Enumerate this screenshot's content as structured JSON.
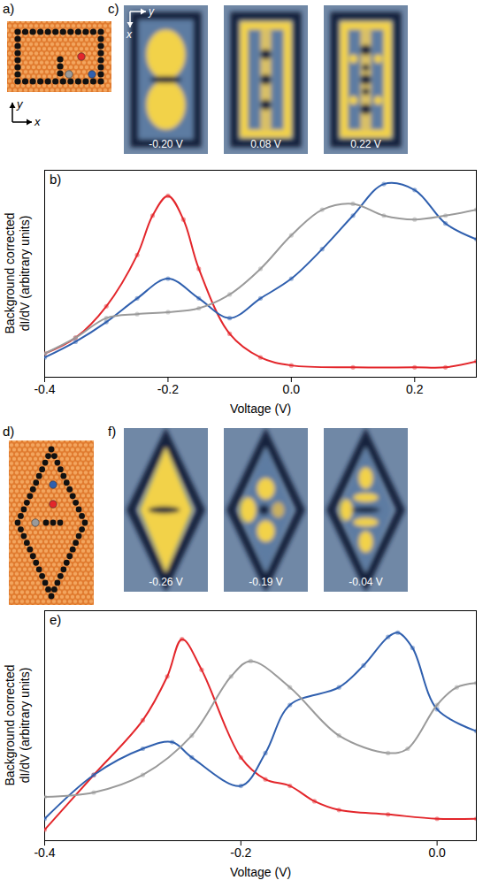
{
  "schematics": [
    {
      "letter": "a)",
      "shape": "rectangle",
      "axis_labels": {
        "vertical": "y",
        "horizontal": "x"
      }
    },
    {
      "letter": "d)",
      "shape": "diamond"
    }
  ],
  "images": [
    {
      "letter": "c)",
      "shape": "rectangle",
      "axis_labels": {
        "horizontal": "y",
        "vertical": "x"
      },
      "labels": [
        "-0.20 V",
        "0.08 V",
        "0.22 V"
      ]
    },
    {
      "letter": "f)",
      "shape": "diamond",
      "labels": [
        "-0.26 V",
        "-0.19 V",
        "-0.04 V"
      ]
    }
  ],
  "chart_data": [
    {
      "type": "line",
      "letter": "b)",
      "xlabel": "Voltage (V)",
      "ylabel": "Background corrected dI/dV (arbitrary units)",
      "xlim": [
        -0.4,
        0.3
      ],
      "xticks": [
        -0.4,
        -0.2,
        {
          "value": 0,
          "label": "0.0"
        },
        0.2
      ],
      "ylim": [
        0,
        1.05
      ],
      "tick_labels": "x",
      "grid": false,
      "series": [
        {
          "color": "#e3262b",
          "marker": "o",
          "line_style": "solid",
          "x": [
            -0.4,
            -0.35,
            -0.3,
            -0.25,
            -0.225,
            -0.2,
            -0.175,
            -0.15,
            -0.1,
            -0.05,
            0,
            0.1,
            0.2,
            0.25,
            0.3
          ],
          "values": [
            0.12,
            0.2,
            0.36,
            0.62,
            0.82,
            0.92,
            0.8,
            0.55,
            0.22,
            0.1,
            0.06,
            0.05,
            0.05,
            0.05,
            0.08
          ]
        },
        {
          "color": "#2f5fae",
          "marker": "o",
          "line_style": "solid",
          "x": [
            -0.4,
            -0.35,
            -0.3,
            -0.25,
            -0.2,
            -0.15,
            -0.1,
            -0.05,
            0,
            0.05,
            0.1,
            0.15,
            0.2,
            0.25,
            0.3
          ],
          "values": [
            0.1,
            0.18,
            0.28,
            0.4,
            0.5,
            0.4,
            0.3,
            0.4,
            0.5,
            0.65,
            0.82,
            0.98,
            0.95,
            0.78,
            0.7
          ]
        },
        {
          "color": "#9a9a9a",
          "marker": "o",
          "line_style": "solid",
          "x": [
            -0.4,
            -0.35,
            -0.3,
            -0.25,
            -0.2,
            -0.15,
            -0.1,
            -0.05,
            0,
            0.05,
            0.1,
            0.15,
            0.2,
            0.25,
            0.3
          ],
          "values": [
            0.12,
            0.2,
            0.3,
            0.32,
            0.33,
            0.35,
            0.42,
            0.55,
            0.72,
            0.85,
            0.88,
            0.82,
            0.8,
            0.82,
            0.85
          ]
        }
      ]
    },
    {
      "type": "line",
      "letter": "e)",
      "xlabel": "Voltage (V)",
      "ylabel": "Background corrected dI/dV (arbitrary units)",
      "xlim": [
        -0.4,
        0.04
      ],
      "xticks": [
        -0.4,
        -0.2,
        {
          "value": 0,
          "label": "0.0"
        }
      ],
      "ylim": [
        0,
        1.05
      ],
      "tick_labels": "x",
      "grid": false,
      "series": [
        {
          "color": "#e3262b",
          "marker": "o",
          "line_style": "solid",
          "x": [
            -0.4,
            -0.35,
            -0.3,
            -0.275,
            -0.26,
            -0.24,
            -0.2,
            -0.175,
            -0.15,
            -0.125,
            -0.1,
            -0.05,
            0,
            0.04
          ],
          "values": [
            0.05,
            0.3,
            0.55,
            0.75,
            0.92,
            0.78,
            0.38,
            0.28,
            0.25,
            0.18,
            0.14,
            0.12,
            0.1,
            0.1
          ]
        },
        {
          "color": "#2f5fae",
          "marker": "o",
          "line_style": "solid",
          "x": [
            -0.4,
            -0.35,
            -0.3,
            -0.27,
            -0.25,
            -0.2,
            -0.175,
            -0.15,
            -0.1,
            -0.075,
            -0.05,
            -0.04,
            -0.025,
            0,
            0.04
          ],
          "values": [
            0.1,
            0.3,
            0.42,
            0.45,
            0.38,
            0.25,
            0.4,
            0.62,
            0.7,
            0.8,
            0.93,
            0.95,
            0.88,
            0.6,
            0.5
          ]
        },
        {
          "color": "#9a9a9a",
          "marker": "o",
          "line_style": "solid",
          "x": [
            -0.4,
            -0.35,
            -0.3,
            -0.25,
            -0.21,
            -0.19,
            -0.15,
            -0.1,
            -0.05,
            -0.03,
            0,
            0.02,
            0.04
          ],
          "values": [
            0.2,
            0.22,
            0.3,
            0.48,
            0.75,
            0.82,
            0.7,
            0.48,
            0.4,
            0.42,
            0.62,
            0.7,
            0.72
          ]
        }
      ]
    }
  ]
}
